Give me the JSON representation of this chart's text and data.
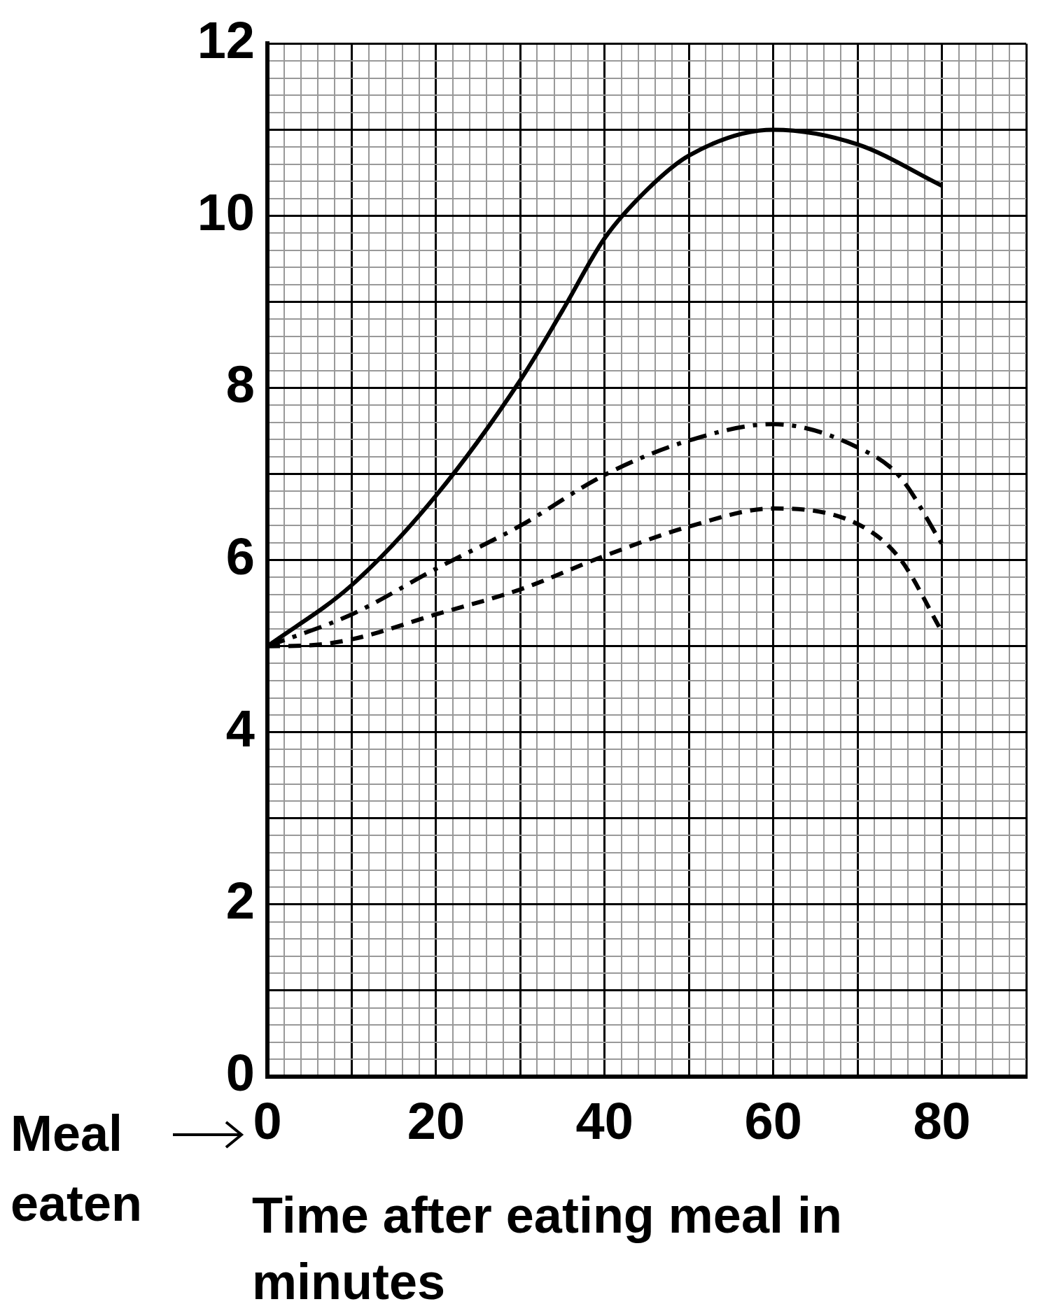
{
  "chart_data": {
    "type": "line",
    "xlabel": "Time after eating meal in minutes",
    "annotations": [
      "Meal eaten"
    ],
    "xlim": [
      0,
      90
    ],
    "xticks": [
      0,
      {
        "value": 2,
        "label": null
      },
      {
        "value": 4,
        "label": null
      },
      {
        "value": 6,
        "label": null
      },
      {
        "value": 8,
        "label": null
      },
      {
        "value": 10,
        "label": null
      },
      {
        "value": 12,
        "label": null
      },
      {
        "value": 14,
        "label": null
      },
      {
        "value": 16,
        "label": null
      },
      {
        "value": 18,
        "label": null
      },
      20,
      {
        "value": 22,
        "label": null
      },
      {
        "value": 24,
        "label": null
      },
      {
        "value": 26,
        "label": null
      },
      {
        "value": 28,
        "label": null
      },
      {
        "value": 30,
        "label": null
      },
      {
        "value": 32,
        "label": null
      },
      {
        "value": 34,
        "label": null
      },
      {
        "value": 36,
        "label": null
      },
      {
        "value": 38,
        "label": null
      },
      40,
      {
        "value": 42,
        "label": null
      },
      {
        "value": 44,
        "label": null
      },
      {
        "value": 46,
        "label": null
      },
      {
        "value": 48,
        "label": null
      },
      {
        "value": 50,
        "label": null
      },
      {
        "value": 52,
        "label": null
      },
      {
        "value": 54,
        "label": null
      },
      {
        "value": 56,
        "label": null
      },
      {
        "value": 58,
        "label": null
      },
      60,
      {
        "value": 62,
        "label": null
      },
      {
        "value": 64,
        "label": null
      },
      {
        "value": 66,
        "label": null
      },
      {
        "value": 68,
        "label": null
      },
      {
        "value": 70,
        "label": null
      },
      {
        "value": 72,
        "label": null
      },
      {
        "value": 74,
        "label": null
      },
      {
        "value": 76,
        "label": null
      },
      {
        "value": 78,
        "label": null
      },
      80,
      {
        "value": 82,
        "label": null
      },
      {
        "value": 84,
        "label": null
      },
      {
        "value": 86,
        "label": null
      },
      {
        "value": 88,
        "label": null
      },
      {
        "value": 90,
        "label": null
      }
    ],
    "ylim": [
      0,
      12
    ],
    "yticks": [
      0,
      {
        "value": 0.2,
        "label": null
      },
      {
        "value": 0.4,
        "label": null
      },
      {
        "value": 0.6,
        "label": null
      },
      {
        "value": 0.8,
        "label": null
      },
      {
        "value": 1,
        "label": null
      },
      {
        "value": 1.2,
        "label": null
      },
      {
        "value": 1.4,
        "label": null
      },
      {
        "value": 1.6,
        "label": null
      },
      {
        "value": 1.8,
        "label": null
      },
      2,
      {
        "value": 2.2,
        "label": null
      },
      {
        "value": 2.4,
        "label": null
      },
      {
        "value": 2.6,
        "label": null
      },
      {
        "value": 2.8,
        "label": null
      },
      {
        "value": 3,
        "label": null
      },
      {
        "value": 3.2,
        "label": null
      },
      {
        "value": 3.4,
        "label": null
      },
      {
        "value": 3.6,
        "label": null
      },
      {
        "value": 3.8,
        "label": null
      },
      4,
      {
        "value": 4.2,
        "label": null
      },
      {
        "value": 4.4,
        "label": null
      },
      {
        "value": 4.6,
        "label": null
      },
      {
        "value": 4.8,
        "label": null
      },
      {
        "value": 5,
        "label": null
      },
      {
        "value": 5.2,
        "label": null
      },
      {
        "value": 5.4,
        "label": null
      },
      {
        "value": 5.6,
        "label": null
      },
      {
        "value": 5.8,
        "label": null
      },
      6,
      {
        "value": 6.2,
        "label": null
      },
      {
        "value": 6.4,
        "label": null
      },
      {
        "value": 6.6,
        "label": null
      },
      {
        "value": 6.8,
        "label": null
      },
      {
        "value": 7,
        "label": null
      },
      {
        "value": 7.2,
        "label": null
      },
      {
        "value": 7.4,
        "label": null
      },
      {
        "value": 7.6,
        "label": null
      },
      {
        "value": 7.8,
        "label": null
      },
      8,
      {
        "value": 8.2,
        "label": null
      },
      {
        "value": 8.4,
        "label": null
      },
      {
        "value": 8.6,
        "label": null
      },
      {
        "value": 8.8,
        "label": null
      },
      {
        "value": 9,
        "label": null
      },
      {
        "value": 9.2,
        "label": null
      },
      {
        "value": 9.4,
        "label": null
      },
      {
        "value": 9.6,
        "label": null
      },
      {
        "value": 9.8,
        "label": null
      },
      10,
      {
        "value": 10.2,
        "label": null
      },
      {
        "value": 10.4,
        "label": null
      },
      {
        "value": 10.6,
        "label": null
      },
      {
        "value": 10.8,
        "label": null
      },
      {
        "value": 11,
        "label": null
      },
      {
        "value": 11.2,
        "label": null
      },
      {
        "value": 11.4,
        "label": null
      },
      {
        "value": 11.6,
        "label": null
      },
      {
        "value": 11.8,
        "label": null
      },
      12
    ],
    "grid": true,
    "marker": "none",
    "series": [
      {
        "color": "#000000",
        "line_style": "solid",
        "x": [
          0,
          10,
          20,
          30,
          35,
          40,
          45,
          50,
          60,
          70,
          80
        ],
        "values": [
          5,
          5.71,
          6.75,
          8.09,
          8.9,
          9.74,
          10.3,
          10.7,
          11,
          10.83,
          10.35
        ]
      },
      {
        "color": "#000000",
        "line_style": "dashdot",
        "x": [
          0,
          10,
          20,
          30,
          40,
          50,
          60,
          70,
          75,
          80
        ],
        "values": [
          5,
          5.37,
          5.9,
          6.4,
          6.99,
          7.39,
          7.58,
          7.31,
          6.97,
          6.19
        ]
      },
      {
        "color": "#000000",
        "line_style": "dashed",
        "x": [
          0,
          5,
          10,
          20,
          30,
          40,
          50,
          60,
          70,
          75,
          80
        ],
        "values": [
          5,
          5.01,
          5.08,
          5.37,
          5.66,
          6.05,
          6.39,
          6.6,
          6.42,
          6.02,
          5.17
        ]
      }
    ]
  }
}
